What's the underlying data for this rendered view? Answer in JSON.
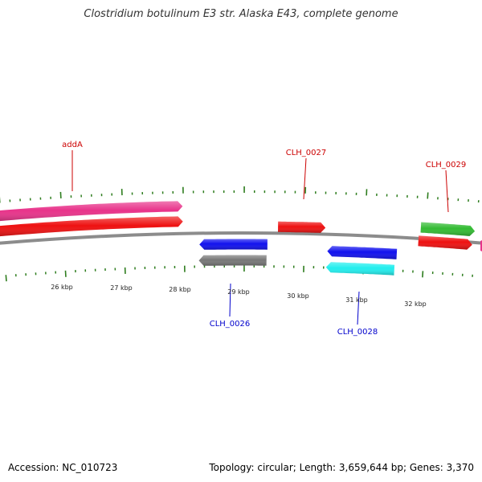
{
  "title": "Clostridium botulinum E3 str. Alaska E43, complete genome",
  "footer": {
    "accession": "Accession: NC_010723",
    "summary": "Topology: circular; Length: 3,659,644 bp; Genes: 3,370"
  },
  "colors": {
    "backbone": "#8c8c8c",
    "tick": "#2e7d1e",
    "forward_label": "#cc0000",
    "reverse_label": "#0000cc",
    "scale_text": "#222222"
  },
  "scale": {
    "labels": [
      "26 kbp",
      "27 kbp",
      "28 kbp",
      "29 kbp",
      "30 kbp",
      "31 kbp",
      "32 kbp"
    ]
  },
  "genes": [
    {
      "name": "addA",
      "strand": "forward",
      "color": "#e8338a",
      "labeled": true
    },
    {
      "name": "",
      "strand": "forward",
      "color": "#ee1111",
      "labeled": false
    },
    {
      "name": "CLH_0027",
      "strand": "forward",
      "color": "#ee1111",
      "labeled": true
    },
    {
      "name": "CLH_0029",
      "strand": "forward",
      "color": "#33bb33",
      "labeled": true
    },
    {
      "name": "",
      "strand": "forward",
      "color": "#ee1111",
      "labeled": false
    },
    {
      "name": "CLH_0026",
      "strand": "reverse",
      "color": "#1111ee",
      "labeled": true
    },
    {
      "name": "",
      "strand": "reverse",
      "color": "#777777",
      "labeled": false
    },
    {
      "name": "CLH_0028",
      "strand": "reverse",
      "color": "#1111ee",
      "labeled": true
    },
    {
      "name": "",
      "strand": "reverse",
      "color": "#22eeee",
      "labeled": false
    }
  ]
}
